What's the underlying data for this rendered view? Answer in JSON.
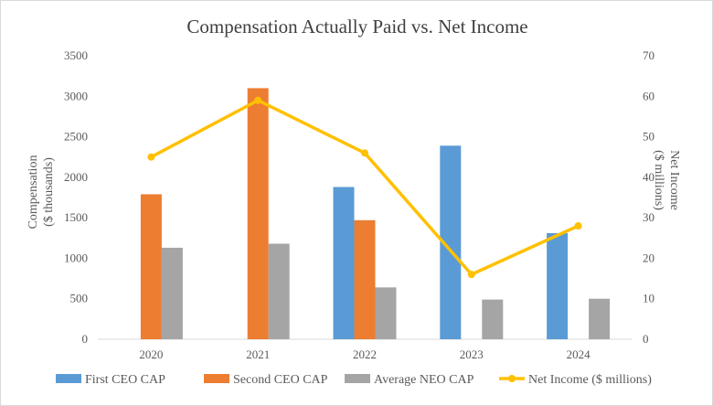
{
  "chart_data": {
    "type": "bar",
    "title": "Compensation Actually Paid vs. Net Income",
    "categories": [
      "2020",
      "2021",
      "2022",
      "2023",
      "2024"
    ],
    "ylabel_left_line1": "Compensation",
    "ylabel_left_line2": "($ thousands)",
    "ylabel_right_line1": "Net Income",
    "ylabel_right_line2": "($ millions)",
    "ylim_left": [
      0,
      3500
    ],
    "ylim_right": [
      0,
      70
    ],
    "yticks_left": [
      "0",
      "500",
      "1000",
      "1500",
      "2000",
      "2500",
      "3000",
      "3500"
    ],
    "yticks_right": [
      "0",
      "10",
      "20",
      "30",
      "40",
      "50",
      "60",
      "70"
    ],
    "series": [
      {
        "name": "First CEO CAP",
        "type": "bar",
        "axis": "left",
        "color": "#5b9bd5",
        "values": [
          null,
          null,
          1880,
          2390,
          1310
        ]
      },
      {
        "name": "Second CEO CAP",
        "type": "bar",
        "axis": "left",
        "color": "#ed7d31",
        "values": [
          1790,
          3100,
          1470,
          null,
          null
        ]
      },
      {
        "name": "Average NEO CAP",
        "type": "bar",
        "axis": "left",
        "color": "#a5a5a5",
        "values": [
          1130,
          1180,
          640,
          490,
          500
        ]
      },
      {
        "name": "Net Income ($ millions)",
        "type": "line",
        "axis": "right",
        "color": "#ffc000",
        "values": [
          45,
          59,
          46,
          16,
          28
        ]
      }
    ],
    "grid": false,
    "legend": "bottom"
  }
}
